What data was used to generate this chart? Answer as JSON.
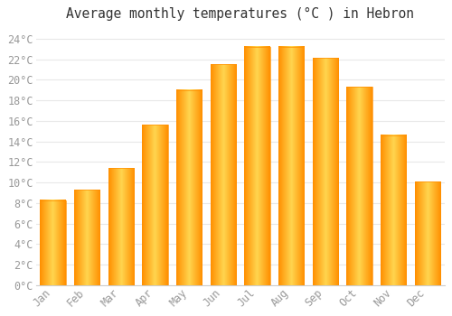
{
  "title": "Average monthly temperatures (°C ) in Hebron",
  "months": [
    "Jan",
    "Feb",
    "Mar",
    "Apr",
    "May",
    "Jun",
    "Jul",
    "Aug",
    "Sep",
    "Oct",
    "Nov",
    "Dec"
  ],
  "values": [
    8.3,
    9.3,
    11.4,
    15.6,
    19.0,
    21.5,
    23.2,
    23.2,
    22.1,
    19.3,
    14.6,
    10.1
  ],
  "bar_color_main": "#FFB300",
  "bar_color_light": "#FFD54F",
  "bar_color_dark": "#FF8F00",
  "bar_edge_color": "#FFB300",
  "background_color": "#ffffff",
  "plot_bg_color": "#ffffff",
  "grid_color": "#e8e8e8",
  "ytick_labels": [
    "0°C",
    "2°C",
    "4°C",
    "6°C",
    "8°C",
    "10°C",
    "12°C",
    "14°C",
    "16°C",
    "18°C",
    "20°C",
    "22°C",
    "24°C"
  ],
  "ytick_values": [
    0,
    2,
    4,
    6,
    8,
    10,
    12,
    14,
    16,
    18,
    20,
    22,
    24
  ],
  "ylim": [
    0,
    25
  ],
  "title_fontsize": 10.5,
  "tick_fontsize": 8.5,
  "tick_color": "#999999",
  "bar_width": 0.75
}
